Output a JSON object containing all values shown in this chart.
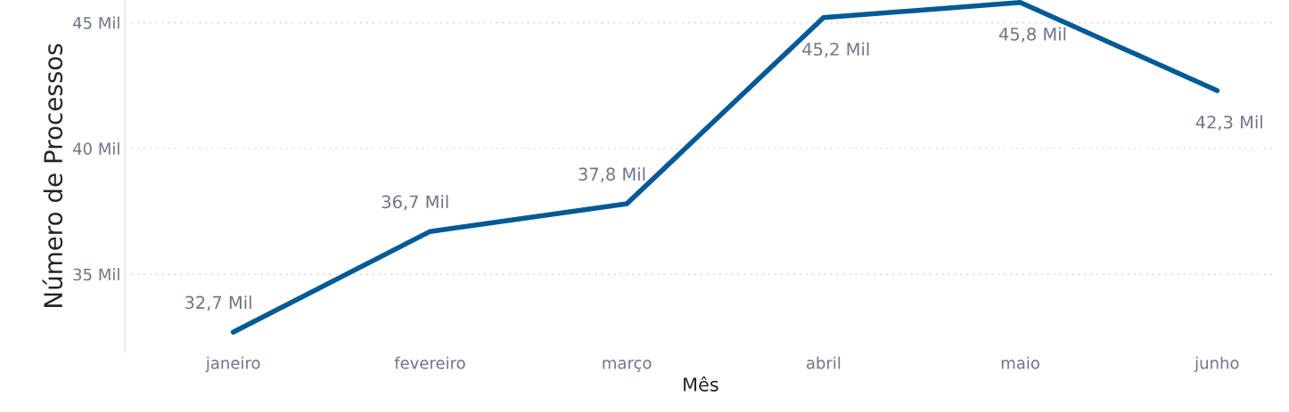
{
  "chart_data": {
    "type": "line",
    "xlabel": "Mês",
    "ylabel": "Número de Processos",
    "categories": [
      "janeiro",
      "fevereiro",
      "março",
      "abril",
      "maio",
      "junho"
    ],
    "series": [
      {
        "color": "#005a96",
        "values": [
          32.7,
          36.7,
          37.8,
          45.2,
          45.8,
          42.3
        ],
        "value_labels": [
          "32,7 Mil",
          "36,7 Mil",
          "37,8 Mil",
          "45,2 Mil",
          "45,8 Mil",
          "42,3 Mil"
        ]
      }
    ],
    "ylim": [
      31.9,
      45.9
    ],
    "yticks": [
      {
        "value": 35,
        "label": "35 Mil"
      },
      {
        "value": 40,
        "label": "40 Mil"
      },
      {
        "value": 45,
        "label": "45 Mil"
      }
    ],
    "grid": "y",
    "marker": "none",
    "line_style": "solid",
    "legend": false
  }
}
